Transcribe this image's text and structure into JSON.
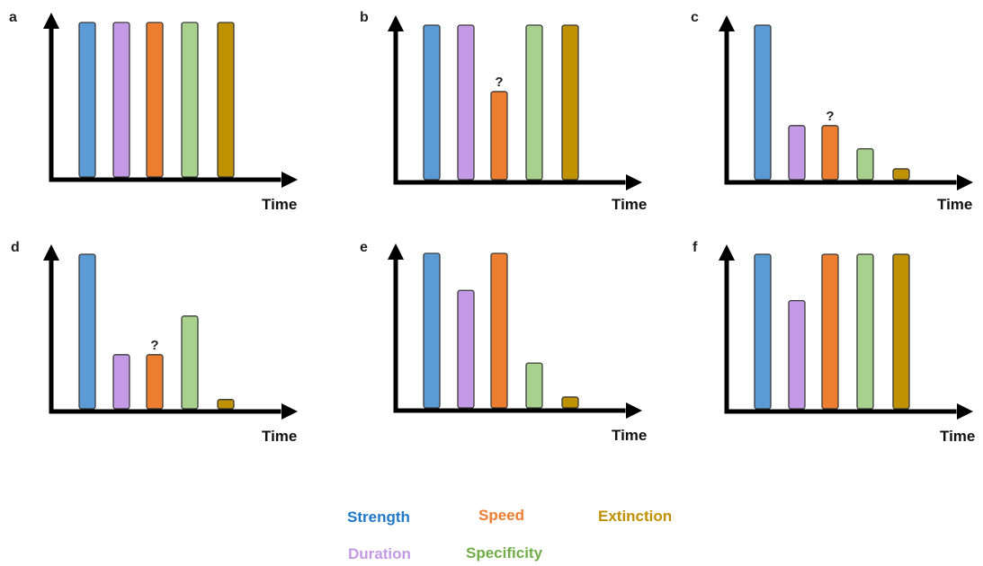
{
  "colors": {
    "strength": "#5b9bd5",
    "duration": "#c49ae6",
    "speed": "#ed7d31",
    "specificity": "#a9d18e",
    "extinction": "#bf9000",
    "legend_strength": "#1f78c8",
    "legend_duration": "#c49ae6",
    "legend_speed": "#ed7d31",
    "legend_specificity": "#70ad47",
    "legend_extinction": "#bf9000"
  },
  "legend": {
    "strength": "Strength",
    "speed": "Speed",
    "extinction": "Extinction",
    "duration": "Duration",
    "specificity": "Specificity"
  },
  "chart_data": [
    {
      "type": "bar",
      "panel": "a",
      "xlabel": "Time",
      "categories": [
        "Strength",
        "Duration",
        "Speed",
        "Specificity",
        "Extinction"
      ],
      "values": [
        1.0,
        1.0,
        1.0,
        1.0,
        1.0
      ],
      "annotations": [],
      "ylim": [
        0,
        1
      ]
    },
    {
      "type": "bar",
      "panel": "b",
      "xlabel": "Time",
      "categories": [
        "Strength",
        "Duration",
        "Speed",
        "Specificity",
        "Extinction"
      ],
      "values": [
        1.0,
        1.0,
        0.57,
        1.0,
        1.0
      ],
      "annotations": [
        {
          "category": "Speed",
          "text": "?"
        }
      ],
      "ylim": [
        0,
        1
      ]
    },
    {
      "type": "bar",
      "panel": "c",
      "xlabel": "Time",
      "categories": [
        "Strength",
        "Duration",
        "Speed",
        "Specificity",
        "Extinction"
      ],
      "values": [
        1.0,
        0.35,
        0.35,
        0.2,
        0.07
      ],
      "annotations": [
        {
          "category": "Speed",
          "text": "?"
        }
      ],
      "ylim": [
        0,
        1
      ]
    },
    {
      "type": "bar",
      "panel": "d",
      "xlabel": "Time",
      "categories": [
        "Strength",
        "Duration",
        "Speed",
        "Specificity",
        "Extinction"
      ],
      "values": [
        1.0,
        0.35,
        0.35,
        0.6,
        0.06
      ],
      "annotations": [
        {
          "category": "Speed",
          "text": "?"
        }
      ],
      "ylim": [
        0,
        1
      ]
    },
    {
      "type": "bar",
      "panel": "e",
      "xlabel": "Time",
      "categories": [
        "Strength",
        "Duration",
        "Speed",
        "Specificity",
        "Extinction"
      ],
      "values": [
        1.0,
        0.76,
        1.0,
        0.29,
        0.07
      ],
      "annotations": [],
      "ylim": [
        0,
        1
      ]
    },
    {
      "type": "bar",
      "panel": "f",
      "xlabel": "Time",
      "categories": [
        "Strength",
        "Duration",
        "Speed",
        "Specificity",
        "Extinction"
      ],
      "values": [
        1.0,
        0.7,
        1.0,
        1.0,
        1.0
      ],
      "annotations": [],
      "ylim": [
        0,
        1
      ]
    }
  ]
}
